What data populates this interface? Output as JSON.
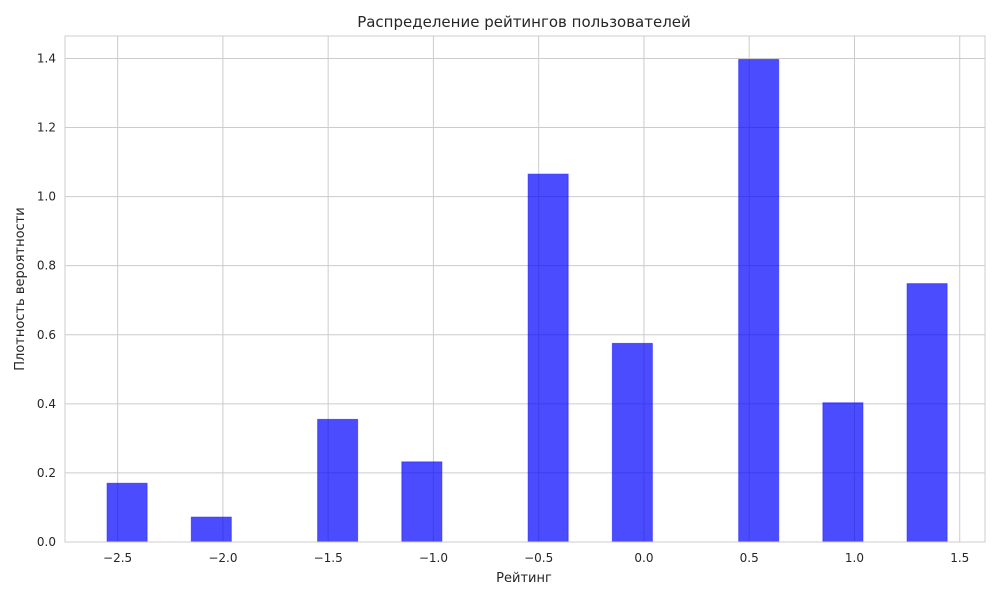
{
  "chart_data": {
    "type": "bar",
    "title": "Распределение рейтингов пользователей",
    "xlabel": "Рейтинг",
    "ylabel": "Плотность вероятности",
    "bar_color": "#0000ff",
    "bar_opacity": 0.7,
    "grid": true,
    "xlim": [
      -2.75,
      1.62
    ],
    "ylim": [
      0,
      1.465
    ],
    "x_ticks": [
      -2.5,
      -2.0,
      -1.5,
      -1.0,
      -0.5,
      0.0,
      0.5,
      1.0,
      1.5
    ],
    "x_tick_labels": [
      "−2.5",
      "−2.0",
      "−1.5",
      "−1.0",
      "−0.5",
      "0.0",
      "0.5",
      "1.0",
      "1.5"
    ],
    "y_ticks": [
      0.0,
      0.2,
      0.4,
      0.6,
      0.8,
      1.0,
      1.2,
      1.4
    ],
    "y_tick_labels": [
      "0.0",
      "0.2",
      "0.4",
      "0.6",
      "0.8",
      "1.0",
      "1.2",
      "1.4"
    ],
    "bars": [
      {
        "x0": -2.55,
        "x1": -2.36,
        "value": 0.17
      },
      {
        "x0": -2.15,
        "x1": -1.96,
        "value": 0.072
      },
      {
        "x0": -1.55,
        "x1": -1.36,
        "value": 0.355
      },
      {
        "x0": -1.15,
        "x1": -0.96,
        "value": 0.232
      },
      {
        "x0": -0.55,
        "x1": -0.36,
        "value": 1.065
      },
      {
        "x0": -0.15,
        "x1": 0.04,
        "value": 0.575
      },
      {
        "x0": 0.45,
        "x1": 0.64,
        "value": 1.397
      },
      {
        "x0": 0.85,
        "x1": 1.04,
        "value": 0.403
      },
      {
        "x0": 1.25,
        "x1": 1.44,
        "value": 0.748
      }
    ]
  }
}
